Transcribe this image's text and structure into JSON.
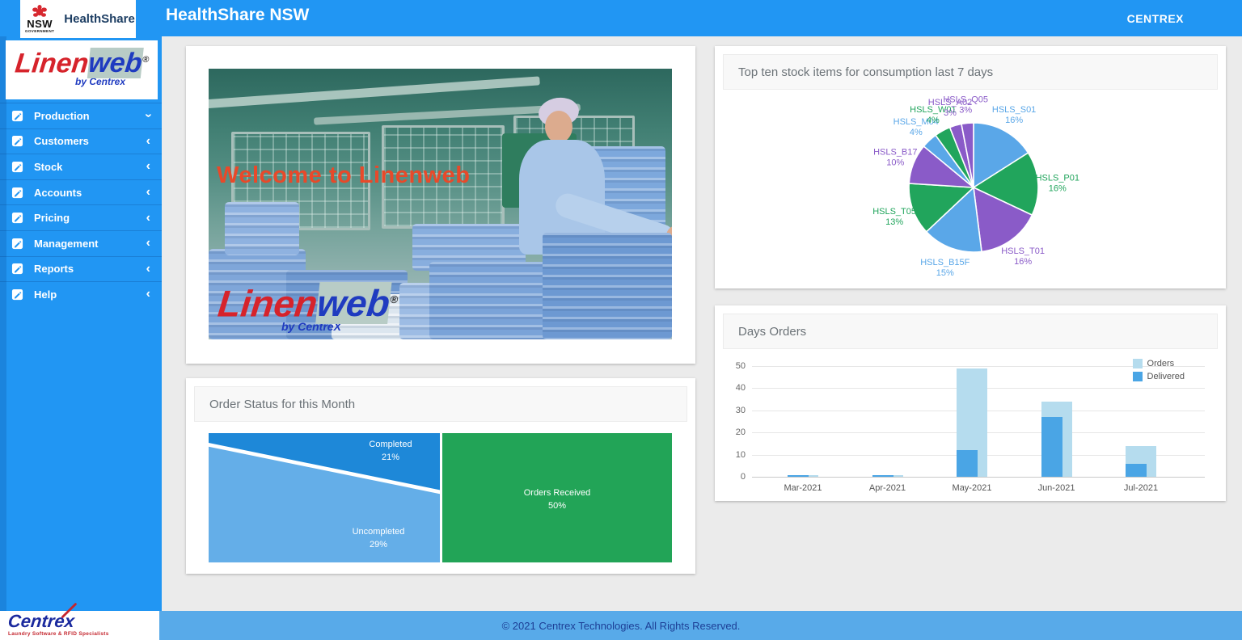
{
  "topbar": {
    "title": "HealthShare NSW",
    "brand": "CENTREX",
    "nsw_logo": {
      "state": "NSW",
      "government": "GOVERNMENT"
    },
    "healthshare_logo": "HealthShare"
  },
  "icons": {
    "chevron": "‹"
  },
  "sidebar": {
    "logo": {
      "part1": "Linen",
      "part2": "web",
      "registered": "®",
      "byline": "by Centrex"
    },
    "items": [
      {
        "label": "Production",
        "chevron": "down"
      },
      {
        "label": "Customers",
        "chevron": "left"
      },
      {
        "label": "Stock",
        "chevron": "left"
      },
      {
        "label": "Accounts",
        "chevron": "left"
      },
      {
        "label": "Pricing",
        "chevron": "left"
      },
      {
        "label": "Management",
        "chevron": "left"
      },
      {
        "label": "Reports",
        "chevron": "left"
      },
      {
        "label": "Help",
        "chevron": "left"
      }
    ]
  },
  "welcome": {
    "overlay_text": "Welcome to Linenweb",
    "logo": {
      "part1": "Linen",
      "part2": "web",
      "registered": "®",
      "byline": "by CentreX"
    }
  },
  "cards": {
    "top_ten_title": "Top ten stock items for consumption last 7 days",
    "days_orders_title": "Days Orders",
    "order_status_title": "Order Status for this Month"
  },
  "footer": {
    "copyright": "© 2021 Centrex Technologies. All Rights Reserved.",
    "logo_text": "Centrex",
    "logo_tagline": "Laundry Software & RFID Specialists"
  },
  "colors": {
    "topbar": "#2196f3",
    "sidebar": "#2196f3",
    "footer_band": "#58aae9",
    "page_bg": "#ebebeb",
    "pie_blue": "#5aa7e8",
    "pie_green": "#21a55c",
    "pie_purple": "#8a5bc8",
    "orders_bar": "#b5dcee",
    "delivered_bar": "#4aa5e5"
  },
  "chart_data": [
    {
      "type": "pie",
      "title": "Top ten stock items for consumption last 7 days",
      "labels": [
        "HSLS_S01",
        "HSLS_P01",
        "HSLS_T01",
        "HSLS_B15F",
        "HSLS_T05",
        "HSLS_B17",
        "HSLS_M04",
        "HSLS_W01",
        "HSLS_A02",
        "HSLS_Q05"
      ],
      "values": [
        16,
        16,
        16,
        15,
        13,
        10,
        4,
        4,
        3,
        3
      ],
      "colors": [
        "#5aa7e8",
        "#21a55c",
        "#8a5bc8",
        "#5aa7e8",
        "#21a55c",
        "#8a5bc8",
        "#5aa7e8",
        "#21a55c",
        "#8a5bc8",
        "#8a5bc8"
      ],
      "label_format": "name and percent around slices",
      "start_angle_deg": 0,
      "direction": "clockwise"
    },
    {
      "type": "area",
      "variant": "order-status-blocks",
      "title": "Order Status for this Month",
      "segments": [
        {
          "label": "Completed",
          "pct": 21,
          "color": "#1e88d8"
        },
        {
          "label": "Uncompleted",
          "pct": 29,
          "color": "#64aee8"
        },
        {
          "label": "Orders Received",
          "pct": 50,
          "color": "#22a457"
        }
      ]
    },
    {
      "type": "bar",
      "title": "Days Orders",
      "categories": [
        "Mar-2021",
        "Apr-2021",
        "May-2021",
        "Jun-2021",
        "Jul-2021"
      ],
      "series": [
        {
          "name": "Orders",
          "color": "#b5dcee",
          "values": [
            0.5,
            0.5,
            49,
            34,
            14
          ]
        },
        {
          "name": "Delivered",
          "color": "#4aa5e5",
          "values": [
            0.5,
            0.5,
            12,
            27,
            6
          ]
        }
      ],
      "ylim": [
        0,
        50
      ],
      "yticks": [
        0,
        10,
        20,
        30,
        40,
        50
      ],
      "grid": true,
      "legend_position": "top-right"
    }
  ]
}
